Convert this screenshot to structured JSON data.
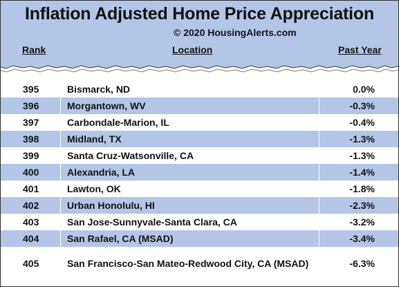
{
  "header": {
    "title": "Inflation Adjusted Home Price Appreciation",
    "copyright": "© 2020 HousingAlerts.com"
  },
  "columns": {
    "rank": "Rank",
    "location": "Location",
    "past_year": "Past Year"
  },
  "rows": [
    {
      "rank": "395",
      "location": "Bismarck, ND",
      "past_year": "0.0%"
    },
    {
      "rank": "396",
      "location": "Morgantown, WV",
      "past_year": "-0.3%"
    },
    {
      "rank": "397",
      "location": "Carbondale-Marion, IL",
      "past_year": "-0.4%"
    },
    {
      "rank": "398",
      "location": "Midland, TX",
      "past_year": "-1.3%"
    },
    {
      "rank": "399",
      "location": "Santa Cruz-Watsonville, CA",
      "past_year": "-1.3%"
    },
    {
      "rank": "400",
      "location": "Alexandria, LA",
      "past_year": "-1.4%"
    },
    {
      "rank": "401",
      "location": "Lawton, OK",
      "past_year": "-1.8%"
    },
    {
      "rank": "402",
      "location": "Urban Honolulu, HI",
      "past_year": "-2.3%"
    },
    {
      "rank": "403",
      "location": "San Jose-Sunnyvale-Santa Clara, CA",
      "past_year": "-3.2%"
    },
    {
      "rank": "404",
      "location": "San Rafael, CA (MSAD)",
      "past_year": "-3.4%"
    },
    {
      "rank": "405",
      "location": "San Francisco-San Mateo-Redwood City, CA (MSAD)",
      "past_year": "-6.3%"
    }
  ],
  "colors": {
    "band": "#b4c6e7",
    "text": "#111111"
  }
}
